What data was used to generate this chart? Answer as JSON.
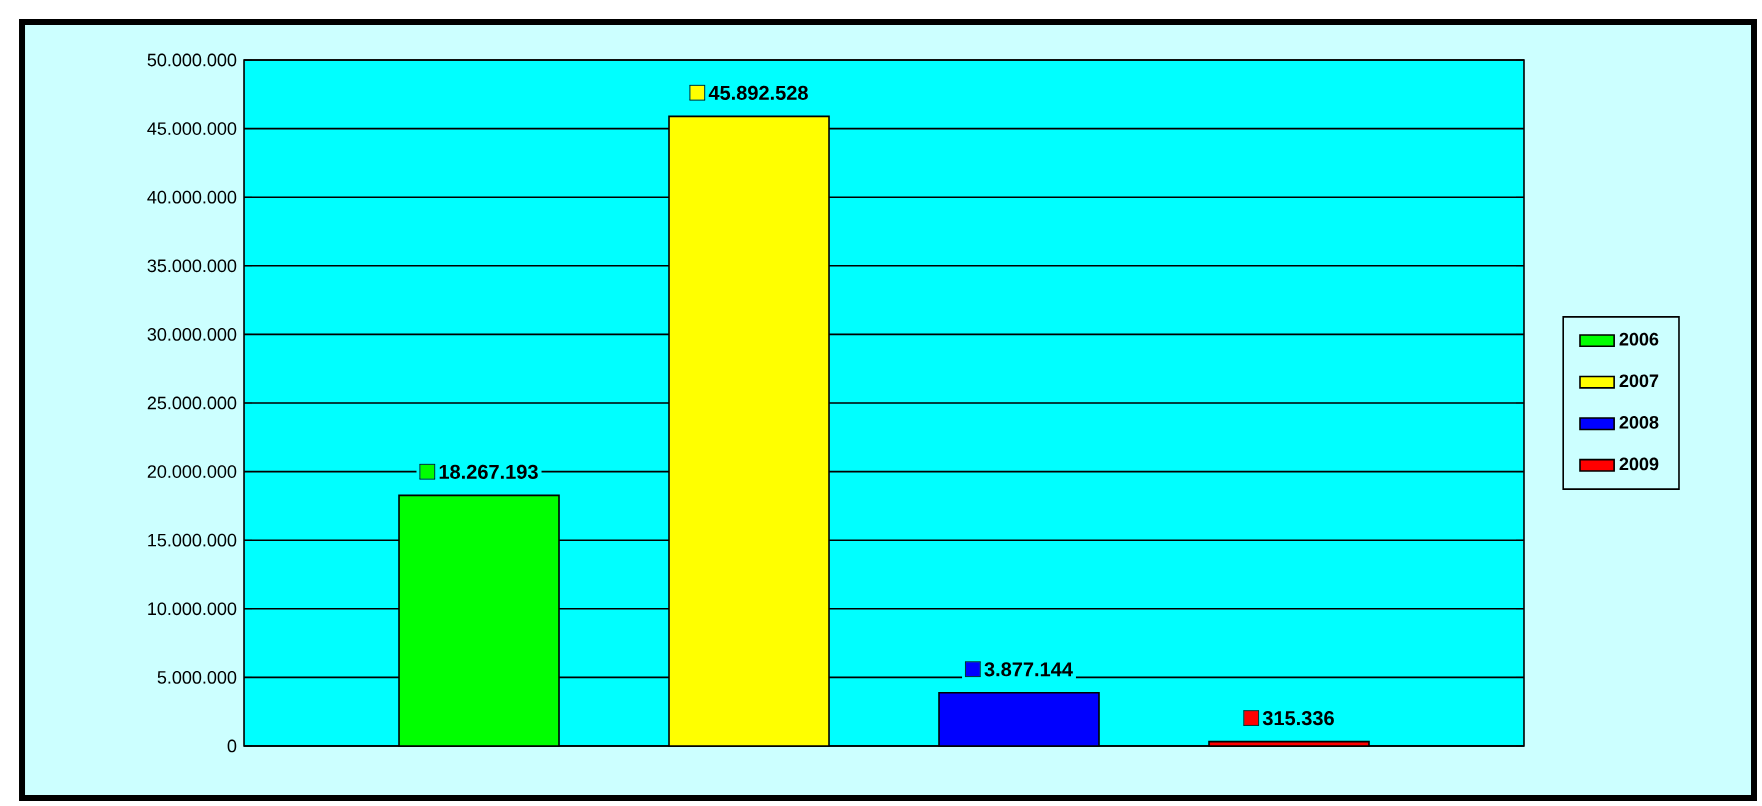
{
  "chart_data": {
    "type": "bar",
    "categories": [
      null
    ],
    "series": [
      {
        "name": "2006",
        "color": "#00ff00",
        "values": [
          18267193
        ],
        "value_labels": [
          "18.267.193"
        ]
      },
      {
        "name": "2007",
        "color": "#ffff00",
        "values": [
          45892528
        ],
        "value_labels": [
          "45.892.528"
        ]
      },
      {
        "name": "2008",
        "color": "#0000ff",
        "values": [
          3877144
        ],
        "value_labels": [
          "3.877.144"
        ]
      },
      {
        "name": "2009",
        "color": "#ff0000",
        "values": [
          315336
        ],
        "value_labels": [
          "315.336"
        ]
      }
    ],
    "ylim": [
      0,
      50000000
    ],
    "yticks": [
      0,
      {
        "value": 5000000,
        "label": "5.000.000"
      },
      {
        "value": 10000000,
        "label": "10.000.000"
      },
      {
        "value": 15000000,
        "label": "15.000.000"
      },
      {
        "value": 20000000,
        "label": "20.000.000"
      },
      {
        "value": 25000000,
        "label": "25.000.000"
      },
      {
        "value": 30000000,
        "label": "30.000.000"
      },
      {
        "value": 35000000,
        "label": "35.000.000"
      },
      {
        "value": 40000000,
        "label": "40.000.000"
      },
      {
        "value": 45000000,
        "label": "45.000.000"
      },
      {
        "value": 50000000,
        "label": "50.000.000"
      }
    ],
    "grid": "y",
    "legend": "right"
  }
}
